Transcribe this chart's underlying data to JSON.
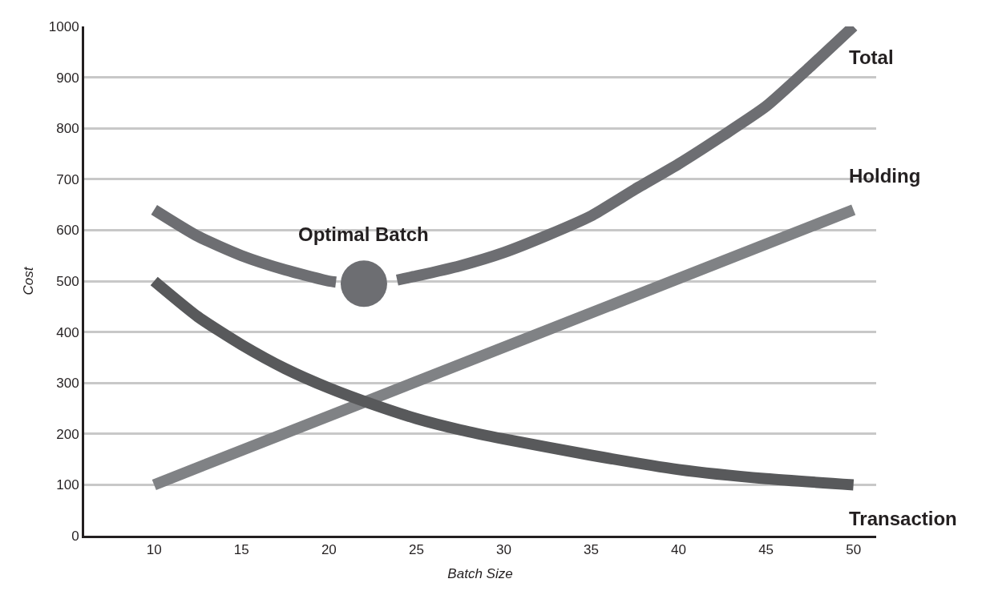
{
  "chart_data": {
    "type": "line",
    "xlabel": "Batch Size",
    "ylabel": "Cost",
    "xlim": [
      6,
      51.3
    ],
    "ylim": [
      0,
      1000
    ],
    "xticks": [
      10,
      15,
      20,
      25,
      30,
      35,
      40,
      45,
      50
    ],
    "yticks": [
      0,
      100,
      200,
      300,
      400,
      500,
      600,
      700,
      800,
      900,
      1000
    ],
    "grid": "y",
    "legend": false,
    "marker": "none",
    "line_style": "solid",
    "series": [
      {
        "name": "Total",
        "color": "#6d6e72",
        "x": [
          10,
          12.5,
          15,
          17.5,
          20,
          20.4,
          22,
          23.9,
          25,
          27.5,
          30,
          32.5,
          35,
          37.5,
          40,
          42.5,
          45,
          47.5,
          50
        ],
        "values": [
          640,
          588,
          550,
          522,
          500,
          498,
          null,
          502,
          510,
          530,
          556,
          590,
          628,
          680,
          730,
          785,
          843,
          920,
          1000
        ]
      },
      {
        "name": "Holding",
        "color": "#808285",
        "x": [
          10,
          50
        ],
        "values": [
          100,
          640
        ]
      },
      {
        "name": "Transaction",
        "color": "#58595b",
        "x": [
          10,
          12.5,
          15,
          17.5,
          20,
          22.5,
          25,
          27.5,
          30,
          35,
          40,
          45,
          50
        ],
        "values": [
          500,
          430,
          375,
          328,
          290,
          258,
          230,
          208,
          190,
          158,
          130,
          112,
          100
        ]
      },
      {
        "type": "scatter",
        "marker": "circle",
        "color": "#6d6e72",
        "x": [
          22
        ],
        "values": [
          495
        ]
      }
    ],
    "annotations": [
      {
        "text": "Optimal Batch",
        "x": 22,
        "y": 495
      }
    ]
  }
}
